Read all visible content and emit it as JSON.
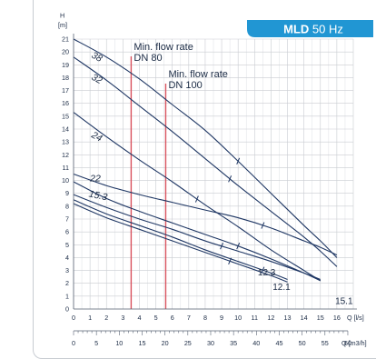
{
  "chart_data": {
    "type": "line",
    "badge": {
      "bold": "MLD",
      "rest": " 50 Hz",
      "color": "#2196d3"
    },
    "y_axis": {
      "label": "H",
      "unit": "[m]",
      "ylim": [
        0,
        21
      ],
      "ticks": [
        0,
        1,
        2,
        3,
        4,
        5,
        6,
        7,
        8,
        9,
        10,
        11,
        12,
        13,
        14,
        15,
        16,
        17,
        18,
        19,
        20,
        21
      ]
    },
    "x_axis": {
      "unit": "Q [l/s]",
      "xlim": [
        0,
        17
      ],
      "ticks": [
        0,
        1,
        2,
        3,
        4,
        5,
        6,
        7,
        8,
        9,
        10,
        11,
        12,
        13,
        14,
        15,
        16
      ]
    },
    "x_axis2": {
      "unit": "Q [m3/h]",
      "ticks": [
        0,
        5,
        10,
        15,
        20,
        25,
        30,
        35,
        40,
        45,
        50,
        55,
        60
      ]
    },
    "grid": true,
    "accent_color": "#1f3764",
    "limit_color": "#d9535f",
    "min_flow_lines": [
      {
        "label_line1": "Min. flow rate",
        "label_line2": "DN 80",
        "x": 3.5
      },
      {
        "label_line1": "Min. flow rate",
        "label_line2": "DN 100",
        "x": 5.6
      }
    ],
    "series": [
      {
        "name": "38",
        "points": [
          [
            0,
            21
          ],
          [
            2,
            19.6
          ],
          [
            4,
            17.9
          ],
          [
            6,
            15.9
          ],
          [
            8,
            13.9
          ],
          [
            10,
            11.5
          ],
          [
            12,
            9
          ],
          [
            14,
            6.5
          ],
          [
            15,
            5.3
          ],
          [
            16,
            4
          ]
        ],
        "marker_x": 10
      },
      {
        "name": "32",
        "points": [
          [
            0,
            19.6
          ],
          [
            2,
            17.8
          ],
          [
            4,
            15.8
          ],
          [
            6,
            13.8
          ],
          [
            8,
            11.7
          ],
          [
            10,
            9.6
          ],
          [
            12,
            7.6
          ],
          [
            14,
            5.6
          ],
          [
            15,
            4.5
          ],
          [
            16,
            3.3
          ]
        ],
        "marker_x": 9.5
      },
      {
        "name": "24",
        "points": [
          [
            0,
            15.3
          ],
          [
            2,
            13.4
          ],
          [
            4,
            11.6
          ],
          [
            6,
            9.9
          ],
          [
            8,
            8.1
          ],
          [
            10,
            6.4
          ],
          [
            12,
            4.6
          ],
          [
            14,
            3
          ],
          [
            15,
            2.2
          ]
        ],
        "marker_x": 7.5
      },
      {
        "name": "22",
        "points": [
          [
            0,
            10.5
          ],
          [
            2,
            9.6
          ],
          [
            4,
            8.9
          ],
          [
            6,
            8.3
          ],
          [
            8,
            7.7
          ],
          [
            10,
            7.1
          ],
          [
            12,
            6.3
          ],
          [
            14,
            5.3
          ],
          [
            15,
            4.8
          ],
          [
            16,
            4.2
          ]
        ],
        "marker_x": 11.5
      },
      {
        "name": "15.3",
        "points": [
          [
            0,
            9.9
          ],
          [
            2,
            8.6
          ],
          [
            4,
            7.6
          ],
          [
            6,
            6.7
          ],
          [
            8,
            5.8
          ],
          [
            10,
            4.9
          ],
          [
            12,
            3.9
          ],
          [
            14,
            2.8
          ],
          [
            15,
            2.2
          ]
        ],
        "marker_x": 10
      },
      {
        "name": "15.1",
        "points": [
          [
            0,
            8.9
          ],
          [
            2,
            7.9
          ],
          [
            4,
            7
          ],
          [
            6,
            6.2
          ],
          [
            8,
            5.3
          ],
          [
            10,
            4.5
          ],
          [
            12,
            3.7
          ],
          [
            14,
            2.8
          ],
          [
            15,
            2.3
          ]
        ],
        "marker_x": 9
      },
      {
        "name": "12.3",
        "points": [
          [
            0,
            8.5
          ],
          [
            2,
            7.4
          ],
          [
            4,
            6.5
          ],
          [
            6,
            5.6
          ],
          [
            8,
            4.6
          ],
          [
            10,
            3.7
          ],
          [
            12,
            2.8
          ],
          [
            13,
            2.3
          ]
        ],
        "marker_x": 11.5
      },
      {
        "name": "12.1",
        "points": [
          [
            0,
            8.2
          ],
          [
            2,
            7.1
          ],
          [
            4,
            6.2
          ],
          [
            6,
            5.3
          ],
          [
            8,
            4.4
          ],
          [
            10,
            3.5
          ],
          [
            12,
            2.6
          ],
          [
            13,
            2.1
          ]
        ],
        "marker_x": 9.5
      }
    ],
    "curve_labels": [
      {
        "text": "38",
        "x": 1.05,
        "y": 19.6,
        "rotate": 28
      },
      {
        "text": "32",
        "x": 1.05,
        "y": 17.9,
        "rotate": 28
      },
      {
        "text": "24",
        "x": 1.05,
        "y": 13.4,
        "rotate": 28
      },
      {
        "text": "22",
        "x": 1.0,
        "y": 9.95,
        "rotate": 0
      },
      {
        "text": "15.3",
        "x": 0.9,
        "y": 8.75,
        "rotate": 12
      }
    ],
    "point_labels": [
      {
        "text": "12.3",
        "x": 11.2,
        "y": 2.6
      },
      {
        "text": "12.1",
        "x": 12.1,
        "y": 1.5
      },
      {
        "text": "15.1",
        "x": 15.9,
        "y": 0.4
      }
    ]
  }
}
